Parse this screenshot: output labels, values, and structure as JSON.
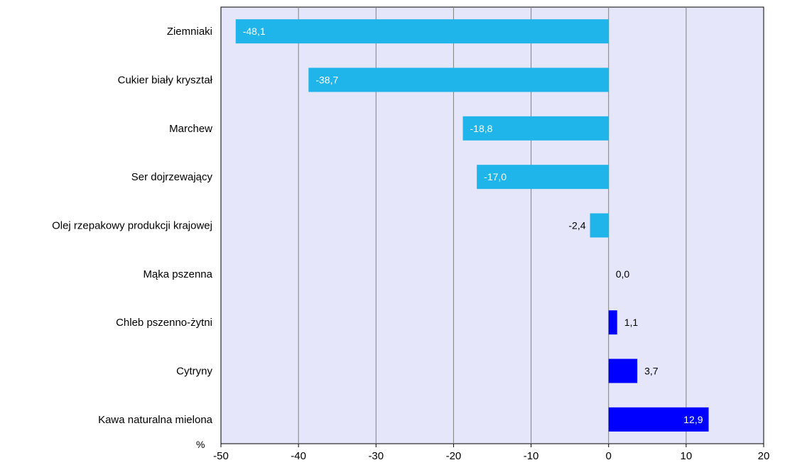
{
  "chart_data": {
    "type": "bar",
    "orientation": "horizontal",
    "categories": [
      "Ziemniaki",
      "Cukier biały kryształ",
      "Marchew",
      "Ser dojrzewający",
      "Olej rzepakowy produkcji krajowej",
      "Mąka pszenna",
      "Chleb pszenno-żytni",
      "Cytryny",
      "Kawa naturalna mielona"
    ],
    "values": [
      -48.1,
      -38.7,
      -18.8,
      -17.0,
      -2.4,
      0.0,
      1.1,
      3.7,
      12.9
    ],
    "value_labels": [
      "-48,1",
      "-38,7",
      "-18,8",
      "-17,0",
      "-2,4",
      "0,0",
      "1,1",
      "3,7",
      "12,9"
    ],
    "xlim": [
      -50,
      20
    ],
    "xticks": [
      -50,
      -40,
      -30,
      -20,
      -10,
      0,
      10,
      20
    ],
    "xtick_labels": [
      "-50",
      "-40",
      "-30",
      "-20",
      "-10",
      "0",
      "10",
      "20"
    ],
    "unit_label": "%",
    "grid": "vertical",
    "colors": {
      "negative": "#1fb4ea",
      "positive": "#0000ff",
      "plot_background": "#e6e6fa",
      "grid": "#808080"
    }
  }
}
